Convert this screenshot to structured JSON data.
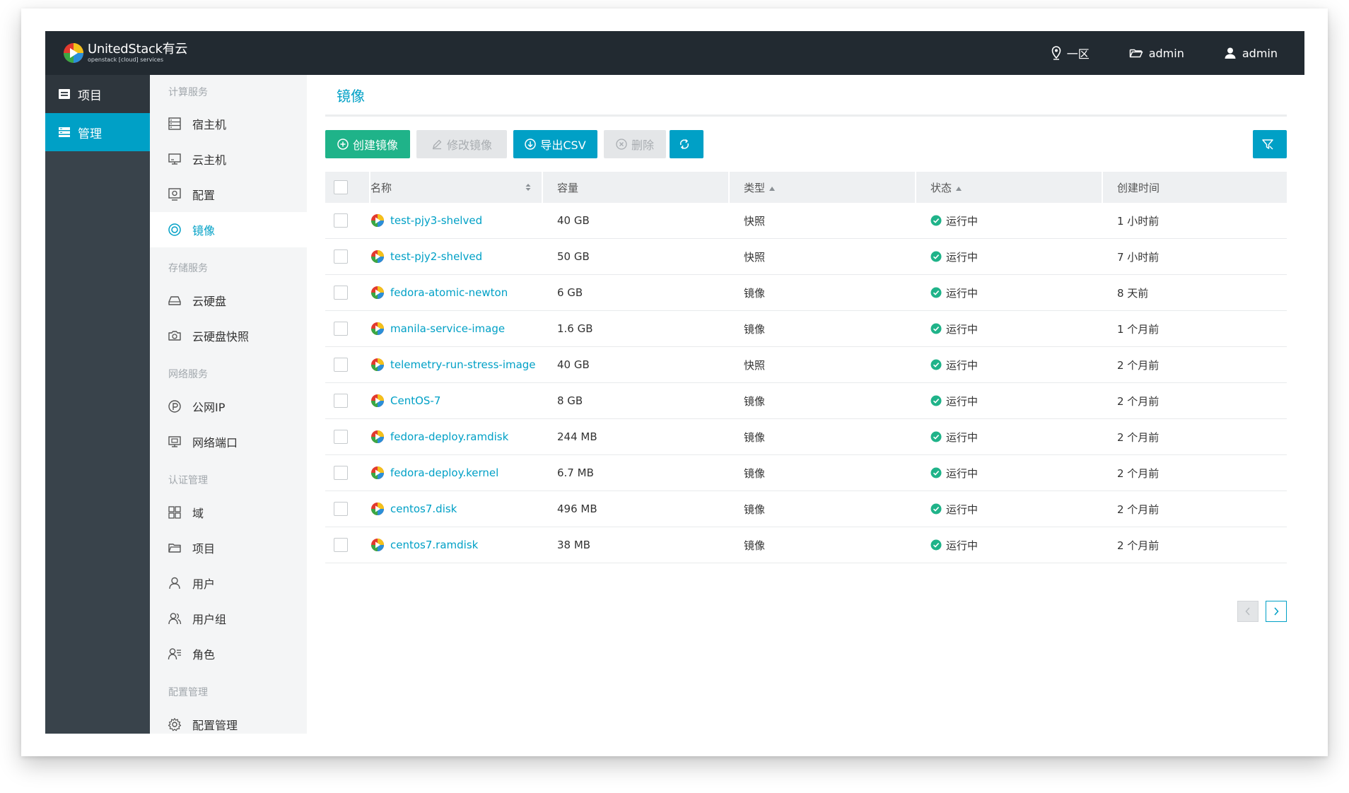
{
  "brand": {
    "name": "UnitedStack有云",
    "tagline": "openstack [cloud] services"
  },
  "topbar": {
    "region": "一区",
    "project": "admin",
    "user": "admin"
  },
  "leftnav": [
    {
      "label": "项目",
      "icon": "project-icon"
    },
    {
      "label": "管理",
      "icon": "manage-icon",
      "active": true
    }
  ],
  "subnav": {
    "groups": [
      {
        "title": "计算服务",
        "items": [
          {
            "label": "宿主机",
            "icon": "host-icon"
          },
          {
            "label": "云主机",
            "icon": "instance-icon"
          },
          {
            "label": "配置",
            "icon": "flavor-icon"
          },
          {
            "label": "镜像",
            "icon": "image-icon",
            "active": true
          }
        ]
      },
      {
        "title": "存储服务",
        "items": [
          {
            "label": "云硬盘",
            "icon": "volume-icon"
          },
          {
            "label": "云硬盘快照",
            "icon": "camera-icon"
          }
        ]
      },
      {
        "title": "网络服务",
        "items": [
          {
            "label": "公网IP",
            "icon": "floating-ip-icon"
          },
          {
            "label": "网络端口",
            "icon": "port-icon"
          }
        ]
      },
      {
        "title": "认证管理",
        "items": [
          {
            "label": "域",
            "icon": "domain-icon"
          },
          {
            "label": "项目",
            "icon": "folder-icon"
          },
          {
            "label": "用户",
            "icon": "user-icon"
          },
          {
            "label": "用户组",
            "icon": "user-group-icon"
          },
          {
            "label": "角色",
            "icon": "role-icon"
          }
        ]
      },
      {
        "title": "配置管理",
        "items": [
          {
            "label": "配置管理",
            "icon": "gear-icon"
          }
        ]
      }
    ]
  },
  "main": {
    "title": "镜像",
    "buttons": {
      "create": "创建镜像",
      "edit": "修改镜像",
      "export": "导出CSV",
      "delete": "删除"
    },
    "columns": [
      "名称",
      "容量",
      "类型",
      "状态",
      "创建时间"
    ],
    "rows": [
      {
        "name": "test-pjy3-shelved",
        "size": "40 GB",
        "type": "快照",
        "status": "运行中",
        "created": "1 小时前"
      },
      {
        "name": "test-pjy2-shelved",
        "size": "50 GB",
        "type": "快照",
        "status": "运行中",
        "created": "7 小时前"
      },
      {
        "name": "fedora-atomic-newton",
        "size": "6 GB",
        "type": "镜像",
        "status": "运行中",
        "created": "8 天前"
      },
      {
        "name": "manila-service-image",
        "size": "1.6 GB",
        "type": "镜像",
        "status": "运行中",
        "created": "1 个月前"
      },
      {
        "name": "telemetry-run-stress-image",
        "size": "40 GB",
        "type": "快照",
        "status": "运行中",
        "created": "2 个月前"
      },
      {
        "name": "CentOS-7",
        "size": "8 GB",
        "type": "镜像",
        "status": "运行中",
        "created": "2 个月前"
      },
      {
        "name": "fedora-deploy.ramdisk",
        "size": "244 MB",
        "type": "镜像",
        "status": "运行中",
        "created": "2 个月前"
      },
      {
        "name": "fedora-deploy.kernel",
        "size": "6.7 MB",
        "type": "镜像",
        "status": "运行中",
        "created": "2 个月前"
      },
      {
        "name": "centos7.disk",
        "size": "496 MB",
        "type": "镜像",
        "status": "运行中",
        "created": "2 个月前"
      },
      {
        "name": "centos7.ramdisk",
        "size": "38 MB",
        "type": "镜像",
        "status": "运行中",
        "created": "2 个月前"
      }
    ]
  },
  "colors": {
    "accent": "#00a0c6",
    "success": "#1fb389",
    "topbar": "#222a31",
    "sidebar": "#39434b"
  }
}
